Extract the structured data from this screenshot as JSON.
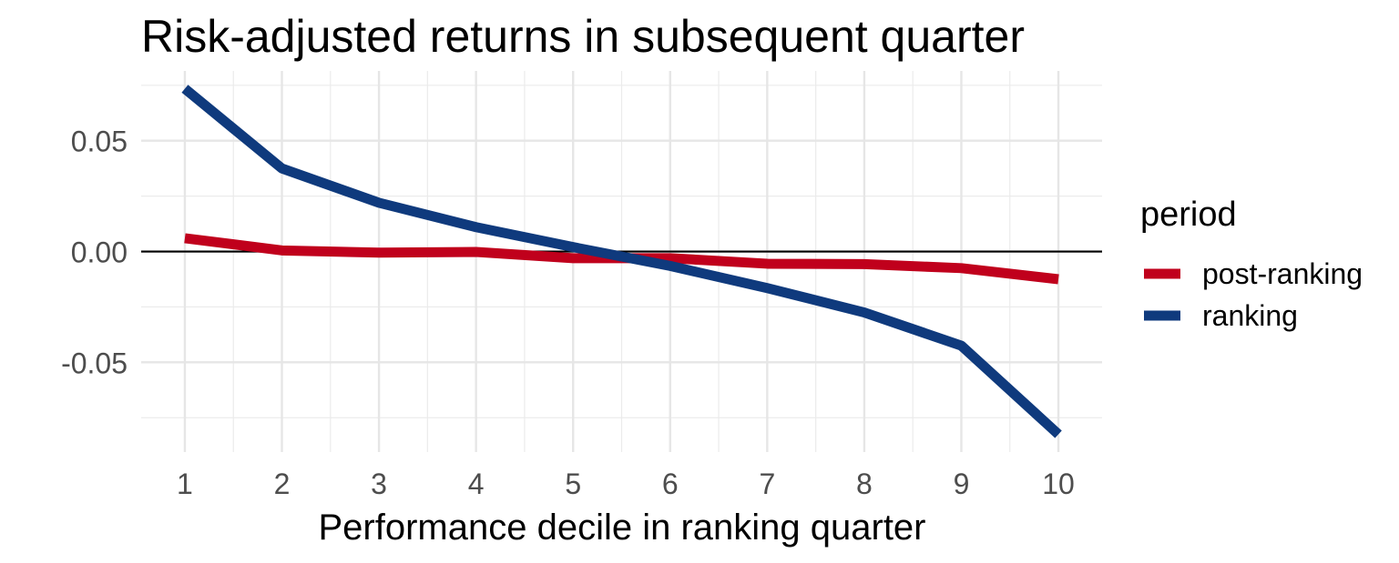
{
  "chart_data": {
    "type": "line",
    "title": "Risk-adjusted returns in subsequent quarter",
    "xlabel": "Performance decile in ranking quarter",
    "ylabel": "",
    "x": [
      1,
      2,
      3,
      4,
      5,
      6,
      7,
      8,
      9,
      10
    ],
    "xlim": [
      0.55,
      10.45
    ],
    "ylim": [
      -0.0905,
      0.0815
    ],
    "y_ticks": [
      -0.05,
      0.0,
      0.05
    ],
    "y_tick_labels": [
      "-0.05",
      "0.00",
      "0.05"
    ],
    "x_tick_labels": [
      "1",
      "2",
      "3",
      "4",
      "5",
      "6",
      "7",
      "8",
      "9",
      "10"
    ],
    "reference_line_y": 0,
    "grid": true,
    "legend": {
      "title": "period",
      "position": "right"
    },
    "series": [
      {
        "name": "post-ranking",
        "color": "#c0001c",
        "values": [
          0.006,
          0.0005,
          -0.0005,
          -0.0002,
          -0.003,
          -0.003,
          -0.0055,
          -0.0057,
          -0.0075,
          -0.0125
        ]
      },
      {
        "name": "ranking",
        "color": "#0f3a7d",
        "values": [
          0.0735,
          0.0375,
          0.022,
          0.011,
          0.002,
          -0.0065,
          -0.0165,
          -0.0275,
          -0.0425,
          -0.0825
        ]
      }
    ]
  }
}
